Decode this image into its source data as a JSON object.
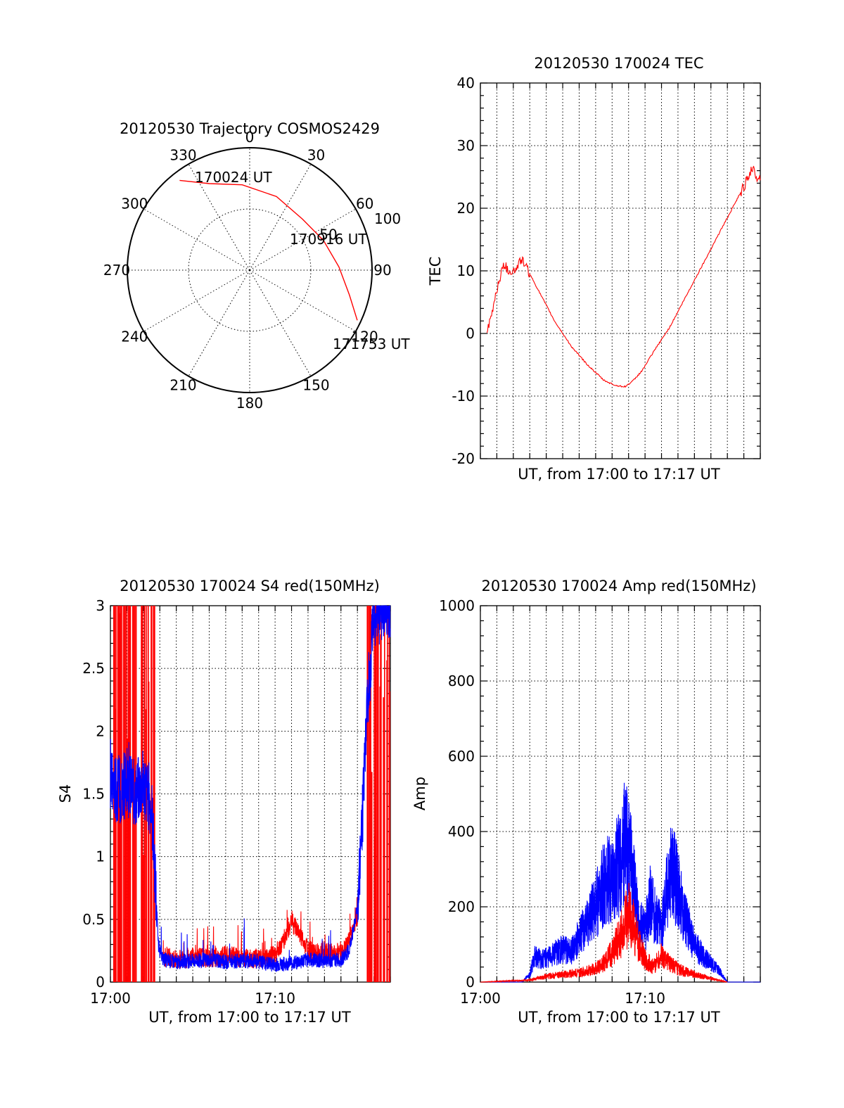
{
  "chart_data": [
    {
      "type": "polar",
      "title": "20120530 Trajectory COSMOS2429",
      "azimuth_labels": [
        "0",
        "30",
        "60",
        "90",
        "120",
        "150",
        "180",
        "210",
        "240",
        "270",
        "300",
        "330"
      ],
      "radius_labels": [
        "50",
        "100"
      ],
      "grid": true,
      "trajectory": {
        "color": "#ff0000",
        "points": [
          {
            "azimuth": 322,
            "zenith": 93
          },
          {
            "azimuth": 335,
            "zenith": 78
          },
          {
            "azimuth": 355,
            "zenith": 70
          },
          {
            "azimuth": 20,
            "zenith": 64
          },
          {
            "azimuth": 46,
            "zenith": 60
          },
          {
            "azimuth": 68,
            "zenith": 65
          },
          {
            "azimuth": 88,
            "zenith": 73
          },
          {
            "azimuth": 104,
            "zenith": 84
          },
          {
            "azimuth": 115,
            "zenith": 97
          }
        ]
      },
      "annotations": [
        "170024 UT",
        "170916 UT",
        "171753 UT"
      ]
    },
    {
      "type": "line",
      "title": "20120530 170024 TEC",
      "xlabel": "UT, from 17:00 to 17:17 UT",
      "ylabel": "TEC",
      "ylim": [
        -20,
        40
      ],
      "yticks": [
        "-20",
        "-10",
        "0",
        "10",
        "20",
        "30",
        "40"
      ],
      "xlim": [
        0,
        17
      ],
      "grid": true,
      "series": [
        {
          "color": "#ff0000",
          "x": [
            0.4,
            0.7,
            0.9,
            1.1,
            1.3,
            1.5,
            1.7,
            1.9,
            2.1,
            2.3,
            2.5,
            2.7,
            3.5,
            4.5,
            5.5,
            6.5,
            7.5,
            8.2,
            8.8,
            9.3,
            9.8,
            10.5,
            11.5,
            12.5,
            13.5,
            14.5,
            15.5,
            16.1,
            16.5,
            16.8,
            17.0
          ],
          "y": [
            0,
            3,
            6,
            8,
            10,
            11,
            10,
            10,
            10,
            11,
            12,
            11,
            7,
            2,
            -2,
            -5,
            -7.5,
            -8.3,
            -8.5,
            -7.5,
            -6,
            -3,
            1,
            6,
            11,
            16,
            21,
            24,
            26.5,
            25,
            25
          ]
        }
      ]
    },
    {
      "type": "line",
      "title": "20120530 170024 S4 red(150MHz)",
      "xlabel": "UT, from 17:00 to 17:17 UT",
      "ylabel": "S4",
      "ylim": [
        0,
        3
      ],
      "yticks": [
        "0",
        "0.5",
        "1",
        "1.5",
        "2",
        "2.5",
        "3"
      ],
      "xlim": [
        0,
        17
      ],
      "xticks": [
        "17:00",
        "17:10"
      ],
      "grid": true,
      "series": [
        {
          "name": "",
          "color": "#0000ff",
          "x": [
            0,
            0.5,
            1,
            1.5,
            2,
            2.5,
            2.7,
            2.9,
            3.2,
            4,
            5,
            6,
            7,
            8,
            9,
            10,
            11,
            12,
            13,
            14,
            14.5,
            15,
            15.3,
            15.6,
            16,
            16.5,
            17
          ],
          "y": [
            1.6,
            1.5,
            1.6,
            1.5,
            1.6,
            1.4,
            0.9,
            0.3,
            0.18,
            0.16,
            0.17,
            0.18,
            0.16,
            0.17,
            0.16,
            0.14,
            0.15,
            0.18,
            0.17,
            0.18,
            0.25,
            0.6,
            1.3,
            2.2,
            2.9,
            3,
            3
          ]
        },
        {
          "name": "",
          "color": "#ff0000",
          "x": [
            3.2,
            4,
            5,
            6,
            7,
            8,
            9,
            10,
            10.5,
            11,
            11.5,
            12,
            13,
            14,
            14.5,
            15
          ],
          "y": [
            0.17,
            0.15,
            0.17,
            0.16,
            0.18,
            0.16,
            0.15,
            0.18,
            0.3,
            0.45,
            0.35,
            0.22,
            0.2,
            0.2,
            0.3,
            0.5
          ]
        }
      ]
    },
    {
      "type": "line",
      "title": "20120530 170024 Amp red(150MHz)",
      "xlabel": "UT, from 17:00 to 17:17 UT",
      "ylabel": "Amp",
      "ylim": [
        0,
        1000
      ],
      "yticks": [
        "0",
        "200",
        "400",
        "600",
        "800",
        "1000"
      ],
      "xlim": [
        0,
        17
      ],
      "xticks": [
        "17:00",
        "17:10"
      ],
      "grid": true,
      "series": [
        {
          "name": "",
          "color": "#0000ff",
          "x": [
            0,
            2.5,
            3,
            3.3,
            3.7,
            4.3,
            5,
            5.5,
            6,
            6.5,
            7,
            7.5,
            8,
            8.5,
            8.8,
            9.2,
            9.6,
            10,
            10.3,
            10.6,
            11,
            11.3,
            11.6,
            12,
            12.4,
            13,
            13.5,
            14.5,
            15,
            17
          ],
          "y": [
            0,
            0,
            20,
            70,
            60,
            70,
            90,
            80,
            120,
            160,
            200,
            260,
            280,
            320,
            380,
            300,
            160,
            130,
            220,
            180,
            150,
            240,
            300,
            250,
            170,
            100,
            70,
            30,
            0,
            0
          ]
        },
        {
          "name": "",
          "color": "#ff0000",
          "x": [
            0,
            3,
            4,
            5,
            6,
            7,
            7.5,
            8,
            8.5,
            9,
            9.3,
            9.7,
            10,
            10.5,
            11,
            11.5,
            12,
            13,
            14,
            15
          ],
          "y": [
            0,
            5,
            15,
            20,
            25,
            35,
            50,
            80,
            120,
            180,
            150,
            90,
            60,
            40,
            70,
            50,
            35,
            20,
            10,
            0
          ]
        }
      ]
    }
  ]
}
